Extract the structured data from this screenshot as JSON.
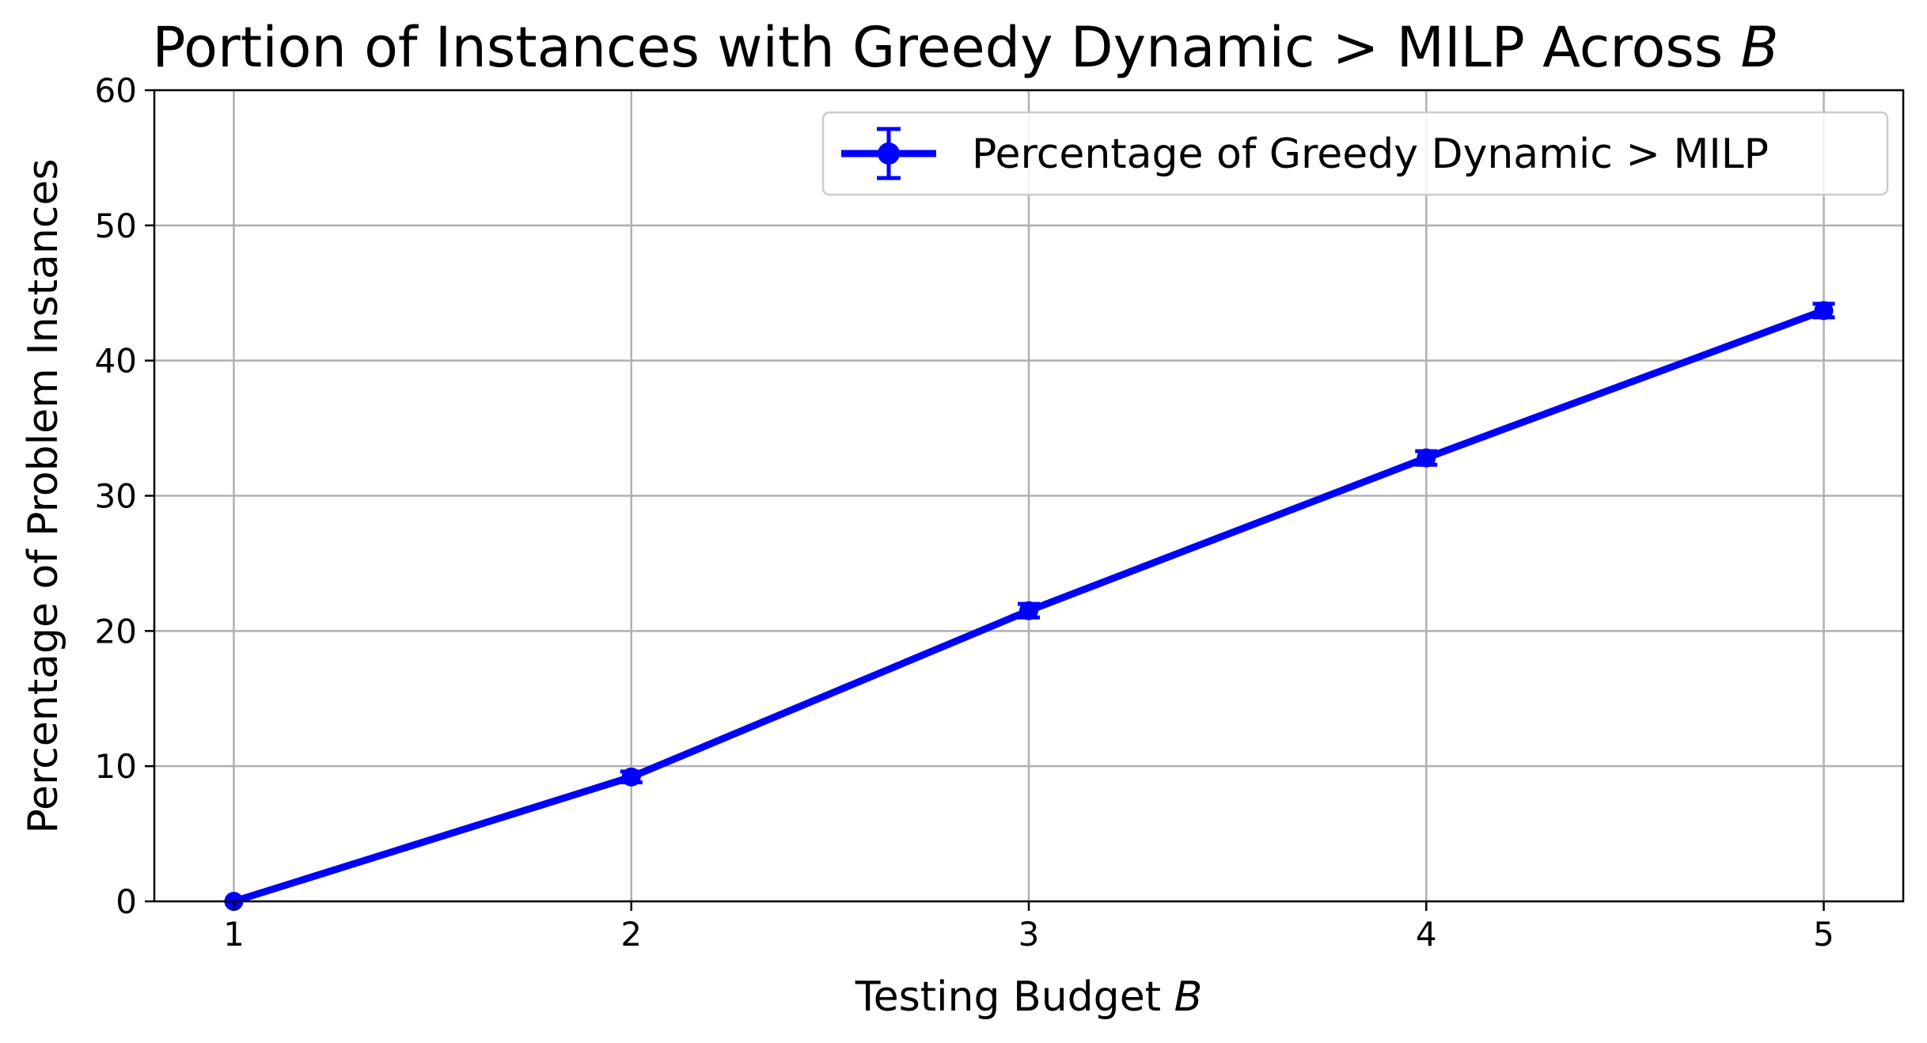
{
  "chart_data": {
    "type": "line",
    "title_prefix": "Portion of Instances with Greedy Dynamic > MILP Across ",
    "title_var": "B",
    "xlabel_prefix": "Testing Budget ",
    "xlabel_var": "B",
    "ylabel": "Percentage of Problem Instances",
    "x": [
      1,
      2,
      3,
      4,
      5
    ],
    "xlim": [
      0.8,
      5.2
    ],
    "ylim": [
      0,
      60
    ],
    "xticks": [
      1,
      2,
      3,
      4,
      5
    ],
    "yticks": [
      0,
      10,
      20,
      30,
      40,
      50,
      60
    ],
    "grid": true,
    "legend_position": "top-right",
    "series": [
      {
        "name": "Percentage of Greedy Dynamic > MILP",
        "values": [
          0.0,
          9.2,
          21.5,
          32.8,
          43.7
        ],
        "errors": [
          0.0,
          0.4,
          0.5,
          0.5,
          0.5
        ],
        "color": "#0000ff",
        "marker": "circle",
        "error_bars": true
      }
    ]
  }
}
